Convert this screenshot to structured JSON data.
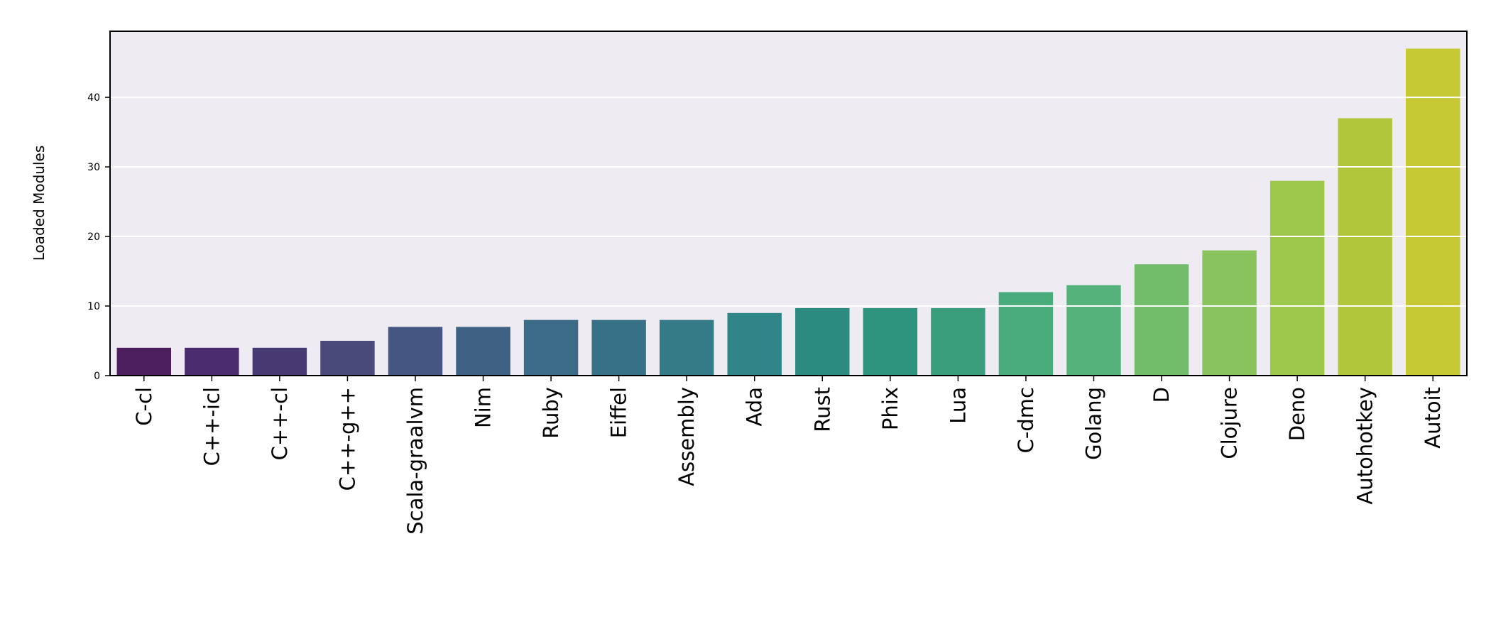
{
  "chart_data": {
    "type": "bar",
    "y_label": "Loaded Modules",
    "categories": [
      "C-cl",
      "C++-icl",
      "C++-cl",
      "C++-g++",
      "Scala-graalvm",
      "Nim",
      "Ruby",
      "Eiffel",
      "Assembly",
      "Ada",
      "Rust",
      "Phix",
      "Lua",
      "C-dmc",
      "Golang",
      "D",
      "Clojure",
      "Deno",
      "Autohotkey",
      "Autoit"
    ],
    "values": [
      4,
      4,
      4,
      5,
      7,
      7,
      8,
      8,
      8,
      9,
      9.7,
      9.7,
      9.7,
      12,
      13,
      16,
      18,
      28,
      37,
      47
    ],
    "colors": [
      "#4b1e5e",
      "#4a2c6e",
      "#473a72",
      "#494a7a",
      "#455682",
      "#3f6184",
      "#3b6b87",
      "#367188",
      "#357a87",
      "#2f8588",
      "#2c8b81",
      "#2e947d",
      "#3a9e7c",
      "#4aab7c",
      "#55b27a",
      "#72bd6a",
      "#88c35e",
      "#9dc84c",
      "#b1c63b",
      "#c6c934"
    ],
    "ylim": [
      0,
      49.5
    ],
    "yticks": [
      0,
      10,
      20,
      30,
      40
    ],
    "grid": true
  }
}
